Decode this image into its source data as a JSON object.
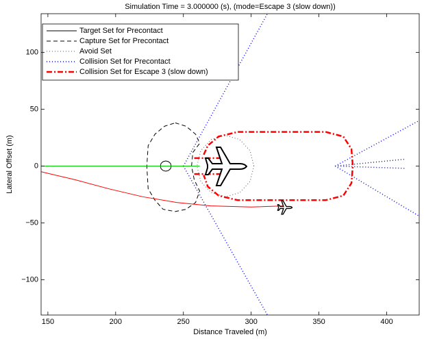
{
  "chart_data": {
    "type": "line",
    "title": "Simulation Time = 3.000000 (s), (mode=Escape 3 (slow down))",
    "xlabel": "Distance Traveled (m)",
    "ylabel": "Lateral Offset (m)",
    "xlim": [
      145,
      424
    ],
    "ylim": [
      -131,
      134
    ],
    "xticks": [
      150,
      200,
      250,
      300,
      350,
      400
    ],
    "yticks": [
      {
        "value": -100,
        "label": "−100"
      },
      {
        "value": -50,
        "label": "−50"
      },
      0,
      50,
      100
    ],
    "grid": false,
    "legend": "upper-left",
    "series": [
      {
        "name": "Target Set for Precontact",
        "color": "#000000",
        "style": "solid",
        "width": 1,
        "x": [
          241,
          240.5,
          239,
          237,
          235,
          233.5,
          233,
          233.5,
          235,
          237,
          239,
          240.5,
          241
        ],
        "y": [
          0,
          2.3,
          3.9,
          4.5,
          3.9,
          2.3,
          0,
          -2.3,
          -3.9,
          -4.5,
          -3.9,
          -2.3,
          0
        ]
      },
      {
        "name": "Capture Set for Precontact",
        "color": "#000000",
        "style": "dashed",
        "width": 1,
        "x": [
          244,
          252,
          259,
          262,
          257,
          256,
          258,
          262,
          259,
          252,
          244,
          235,
          229,
          224,
          223,
          224,
          229,
          236,
          244
        ],
        "y": [
          38,
          35,
          28,
          20,
          12,
          0,
          -12,
          -22,
          -32,
          -38,
          -40,
          -38,
          -30,
          -20,
          0,
          18,
          28,
          35,
          38
        ]
      },
      {
        "name": "Avoid Set",
        "color": "#555555",
        "style": "dotted",
        "width": 1,
        "x": [
          302,
          299.2,
          291.5,
          281,
          270.5,
          262.8,
          260,
          262.8,
          270.5,
          281,
          291.5,
          299.2,
          302
        ],
        "y": [
          0,
          13.5,
          23.4,
          27,
          23.4,
          13.5,
          0,
          -13.5,
          -23.4,
          -27,
          -23.4,
          -13.5,
          0
        ]
      },
      {
        "name": "Collision Set for Precontact",
        "color": "#0000ff",
        "style": "dotted",
        "width": 1.5,
        "x": [
          250,
          312,
          null,
          250,
          312,
          null,
          362,
          424,
          null,
          362,
          413,
          null,
          362,
          413,
          null,
          362,
          424
        ],
        "y": [
          0,
          134,
          null,
          0,
          -131,
          null,
          0,
          40,
          null,
          0,
          6,
          null,
          0,
          -2,
          null,
          0,
          -44
        ]
      },
      {
        "name": "Collision Set for Escape 3 (slow down)",
        "color": "#ff0000",
        "style": "dashdot",
        "width": 2.5,
        "x": [
          265,
          268,
          276,
          290,
          355,
          368,
          374,
          375,
          374,
          368,
          355,
          290,
          276,
          268,
          265,
          null,
          258,
          280,
          null,
          258,
          280
        ],
        "y": [
          10,
          18,
          26,
          30,
          30,
          26,
          15,
          0,
          -15,
          -26,
          -30,
          -30,
          -26,
          -18,
          -8,
          null,
          7,
          7,
          null,
          -7,
          -7
        ]
      },
      {
        "color": "#00cc00",
        "style": "solid",
        "width": 1,
        "x": [
          145,
          262
        ],
        "y": [
          0,
          0
        ]
      },
      {
        "color": "#ff0000",
        "style": "solid",
        "width": 1,
        "x": [
          145,
          170,
          195,
          220,
          245,
          270,
          300,
          325
        ],
        "y": [
          -5,
          -12,
          -20,
          -27,
          -32,
          -35,
          -36,
          -35
        ]
      }
    ]
  }
}
